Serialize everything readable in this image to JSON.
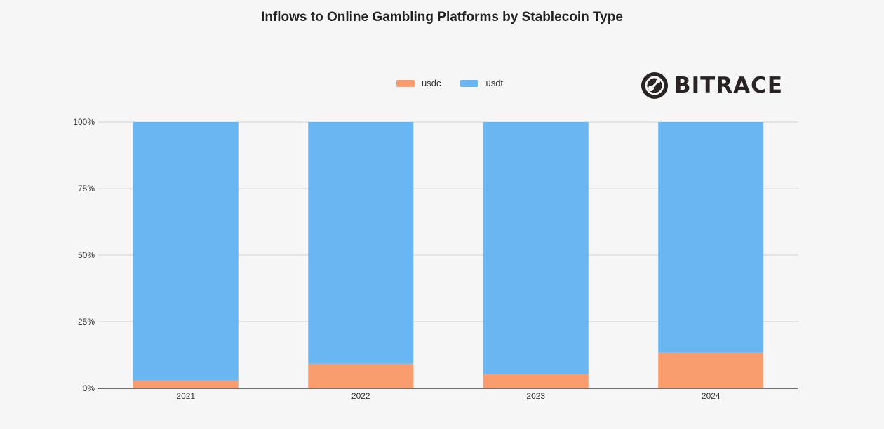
{
  "title": "Inflows to Online Gambling Platforms by Stablecoin Type",
  "logo": {
    "text": "BITRACE",
    "icon": "bitrace-logo-icon"
  },
  "colors": {
    "usdc": "#f99c6e",
    "usdt": "#69b6f3",
    "grid": "#d4d4d4",
    "axis": "#222222",
    "background": "#f6f6f6"
  },
  "chart_data": {
    "type": "bar",
    "stacked": true,
    "normalized": true,
    "title": "Inflows to Online Gambling Platforms by Stablecoin Type",
    "categories": [
      "2021",
      "2022",
      "2023",
      "2024"
    ],
    "series": [
      {
        "name": "usdc",
        "values": [
          3,
          9.3,
          5.3,
          13.5
        ]
      },
      {
        "name": "usdt",
        "values": [
          97,
          90.7,
          94.7,
          86.5
        ]
      }
    ],
    "ylim": [
      0,
      100
    ],
    "yticks": [
      "0%",
      "25%",
      "50%",
      "75%",
      "100%"
    ],
    "ytick_values": [
      0,
      25,
      50,
      75,
      100
    ],
    "xlabel": "",
    "ylabel": "",
    "grid": true,
    "legend_position": "top-center"
  }
}
